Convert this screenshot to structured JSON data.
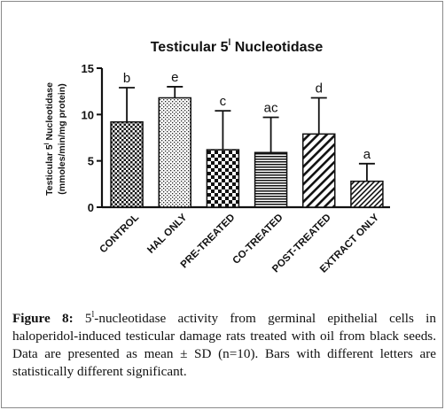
{
  "figure": {
    "caption_label": "Figure 8:",
    "caption_sup": "l",
    "caption_text": "-nucleotidase activity from germinal epithelial cells in haloperidol-induced testicular damage rats treated with oil from black seeds. Data are presented as mean ± SD (n=10). Bars with different letters are statistically different significant."
  },
  "chart_data": {
    "type": "bar",
    "title": "Testicular 5",
    "title_sup": "l",
    "title_end": " Nucleotidase",
    "ylabel_line1_pre": "Testicular 5",
    "ylabel_line1_sup": "l",
    "ylabel_line1_post": " Nucleotidase",
    "ylabel_line2": "(mmoles/min/mg protein)",
    "ylim": [
      0,
      15
    ],
    "yticks": [
      0,
      5,
      10,
      15
    ],
    "grid": false,
    "categories": [
      "CONTROL",
      "HAL ONLY",
      "PRE-TREATED",
      "CO-TREATED",
      "POST-TREATED",
      "EXTRACT ONLY"
    ],
    "values": [
      9.2,
      11.8,
      6.2,
      5.9,
      7.9,
      2.8
    ],
    "errors": [
      3.7,
      1.2,
      4.2,
      3.8,
      3.9,
      1.9
    ],
    "letters": [
      "b",
      "e",
      "c",
      "ac",
      "d",
      "a"
    ],
    "patterns": [
      "grid-check",
      "dots",
      "checker",
      "hlines",
      "diag",
      "diag-dense"
    ]
  }
}
